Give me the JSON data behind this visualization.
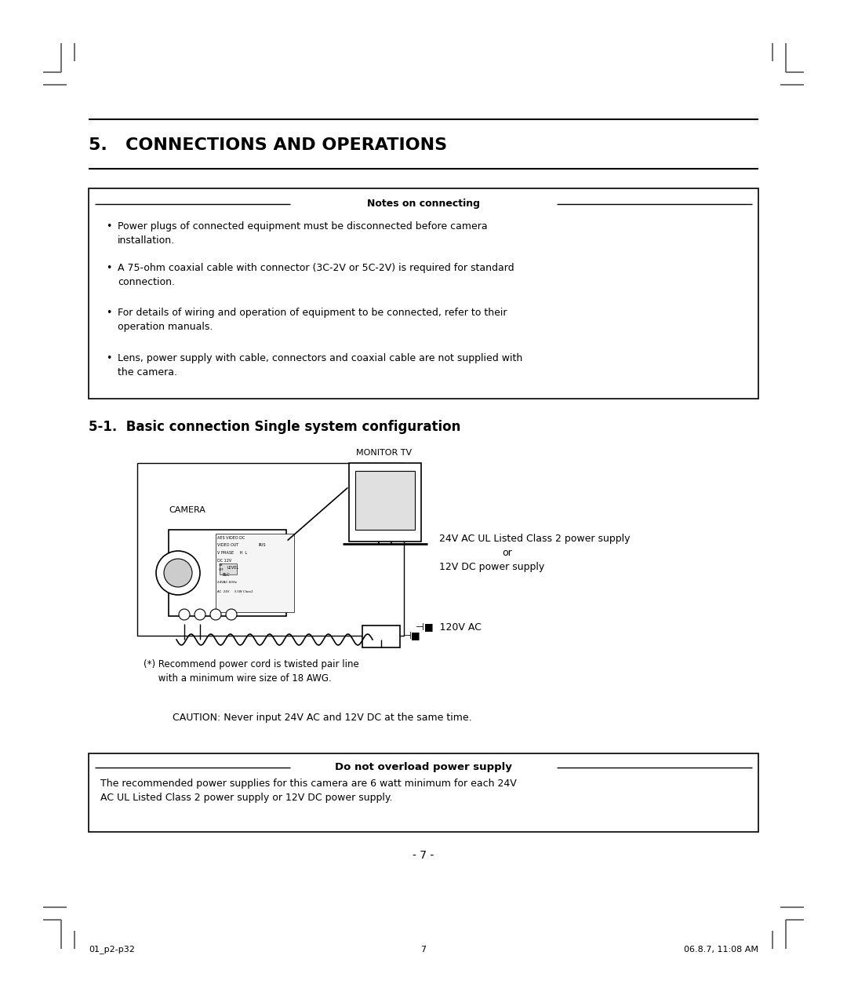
{
  "bg_color": "#ffffff",
  "section_title": "5.   CONNECTIONS AND OPERATIONS",
  "notes_box_title": "Notes on connecting",
  "notes_items": [
    "Power plugs of connected equipment must be disconnected before camera\ninstallation.",
    "A 75-ohm coaxial cable with connector (3C-2V or 5C-2V) is required for standard\nconnection.",
    "For details of wiring and operation of equipment to be connected, refer to their\noperation manuals.",
    "Lens, power supply with cable, connectors and coaxial cable are not supplied with\nthe camera."
  ],
  "subsection_title": "5-1.  Basic connection Single system configuration",
  "monitor_label": "MONITOR TV",
  "camera_label": "CAMERA",
  "power_line1": "24V AC UL Listed Class 2 power supply",
  "power_line2": "or",
  "power_line3": "12V DC power supply",
  "ac120_text": "⊣■  120V AC",
  "footnote1": "(*) Recommend power cord is twisted pair line",
  "footnote2": "     with a minimum wire size of 18 AWG.",
  "caution_text": "CAUTION: Never input 24V AC and 12V DC at the same time.",
  "warning_title": "Do not overload power supply",
  "warning_body": "The recommended power supplies for this camera are 6 watt minimum for each 24V\nAC UL Listed Class 2 power supply or 12V DC power supply.",
  "page_num": "- 7 -",
  "footer_left": "01_p2-p32",
  "footer_center": "7",
  "footer_right": "06.8.7, 11:08 AM"
}
